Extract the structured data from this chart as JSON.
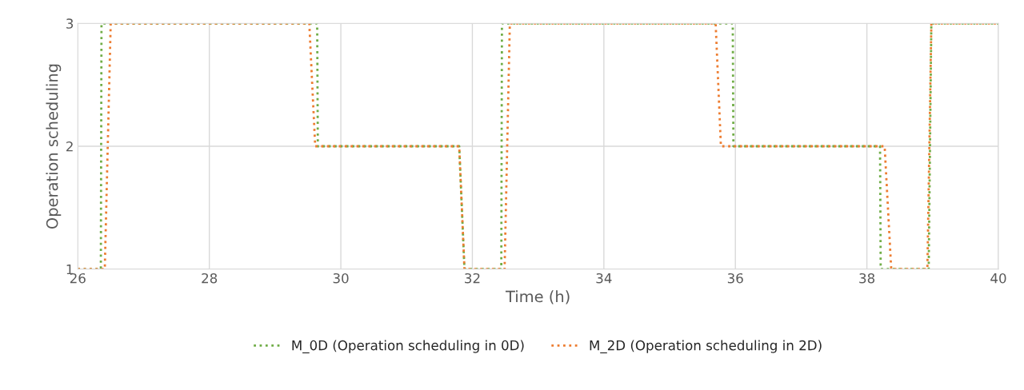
{
  "chart_data": {
    "type": "line",
    "xlabel": "Time (h)",
    "ylabel": "Operation scheduling",
    "xlim": [
      26,
      40
    ],
    "xticks": [
      26,
      28,
      30,
      32,
      34,
      36,
      38,
      40
    ],
    "ylim": [
      1,
      3
    ],
    "yticks": [
      1,
      2,
      3
    ],
    "grid": true,
    "legend": "bottom",
    "line_style": "dotted",
    "marker": "none",
    "series": [
      {
        "name": "M_0D (Operation scheduling in 0D)",
        "color": "#70ad47",
        "x": [
          26,
          26.35,
          26.36,
          29.64,
          29.65,
          31.8,
          31.88,
          32.44,
          32.45,
          35.96,
          35.97,
          38.2,
          38.21,
          38.94,
          38.98,
          40
        ],
        "values": [
          1,
          1,
          3,
          3,
          2,
          2,
          1,
          1,
          3,
          3,
          2,
          2,
          1,
          1,
          3,
          3
        ]
      },
      {
        "name": "M_2D (Operation scheduling in 2D)",
        "color": "#ed7d31",
        "x": [
          26,
          26.41,
          26.5,
          29.52,
          29.61,
          31.8,
          31.88,
          32.49,
          32.57,
          35.7,
          35.78,
          38.27,
          38.37,
          38.92,
          38.98,
          40
        ],
        "values": [
          1,
          1,
          3,
          3,
          2,
          2,
          1,
          1,
          3,
          3,
          2,
          2,
          1,
          1,
          3,
          3
        ]
      }
    ]
  }
}
